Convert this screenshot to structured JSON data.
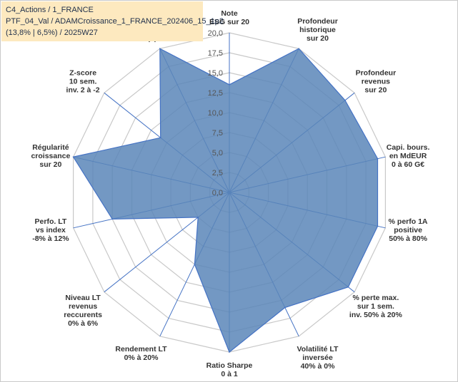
{
  "title_lines": [
    "C4_Actions / 1_FRANCE",
    "PTF_04_Val / ADAMCroissance_1_FRANCE_202406_15_1p2",
    "(13,8% | 6,5%) / 2025W27"
  ],
  "colors": {
    "fill": "#5b86b8",
    "stroke": "#4472c4",
    "grid": "#c8c8c8",
    "spoke": "#4472c4",
    "title_bg": "#fde9bf"
  },
  "chart_data": {
    "type": "radar",
    "title": "",
    "rmin": 0,
    "rmax": 20,
    "ticks": [
      "0,0",
      "2,5",
      "5,0",
      "7,5",
      "10,0",
      "12,5",
      "15,0",
      "17,5",
      "20,0"
    ],
    "tick_values": [
      0,
      2.5,
      5,
      7.5,
      10,
      12.5,
      15,
      17.5,
      20
    ],
    "categories": [
      [
        "Note",
        "ESG sur 20"
      ],
      [
        "Profondeur",
        "historique",
        "sur 20"
      ],
      [
        "Profondeur",
        "revenus",
        "sur 20"
      ],
      [
        "Capi. bours.",
        "en MdEUR",
        "0 à 60 G€"
      ],
      [
        "% perfo 1A",
        "positive",
        "50% à 80%"
      ],
      [
        "% perte max.",
        "sur 1 sem.",
        "inv. 50% à 20%"
      ],
      [
        "Volatilité LT",
        "inversée",
        "40% à 0%"
      ],
      [
        "Ratio Sharpe",
        "0 à 1"
      ],
      [
        "Rendement LT",
        "0% à 20%"
      ],
      [
        "Niveau LT",
        "revenus",
        "reccurents",
        "0% à 6%"
      ],
      [
        "Perfo. LT",
        "vs index",
        "-8% à 12%"
      ],
      [
        "Régularité",
        "croissance",
        "sur 20"
      ],
      [
        "Z-score",
        "10 sem.",
        "inv. 2 à -2"
      ],
      [
        "Momentum",
        "Achat (20) /",
        "Vente (0)"
      ]
    ],
    "series": [
      {
        "values": [
          13.5,
          20,
          18.5,
          19,
          19,
          19,
          16,
          20,
          10,
          5,
          15,
          20,
          11,
          20
        ]
      }
    ]
  }
}
